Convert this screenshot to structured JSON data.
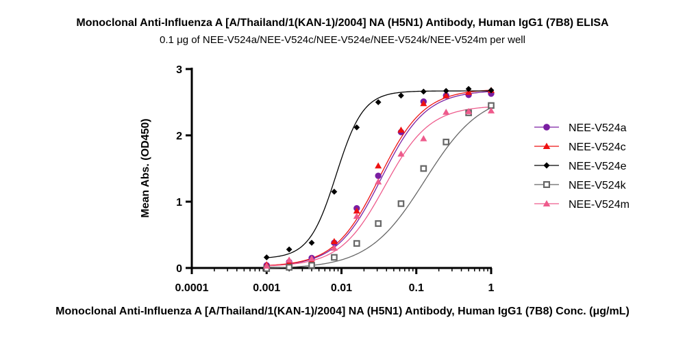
{
  "chart_data": {
    "type": "scatter",
    "title": "Monoclonal Anti-Influenza A [A/Thailand/1(KAN-1)/2004] NA (H5N1) Antibody, Human IgG1 (7B8) ELISA",
    "subtitle": "0.1 μg of  NEE-V524a/NEE-V524c/NEE-V524e/NEE-V524k/NEE-V524m  per well",
    "xlabel": "Monoclonal Anti-Influenza A [A/Thailand/1(KAN-1)/2004] NA (H5N1) Antibody, Human IgG1 (7B8) Conc. (μg/mL)",
    "ylabel": "Mean Abs. (OD450)",
    "x_scale": "log",
    "xlim": [
      0.0001,
      1
    ],
    "ylim": [
      0,
      3
    ],
    "x_ticks": [
      0.0001,
      0.001,
      0.01,
      0.1,
      1
    ],
    "x_tick_labels": [
      "0.0001",
      "0.001",
      "0.01",
      "0.1",
      "1"
    ],
    "y_ticks": [
      0,
      1,
      2,
      3
    ],
    "y_tick_labels": [
      "0",
      "1",
      "2",
      "3"
    ],
    "grid": false,
    "legend_position": "right",
    "x": [
      0.001,
      0.002,
      0.004,
      0.008,
      0.016,
      0.031,
      0.0625,
      0.125,
      0.25,
      0.5,
      1
    ],
    "series": [
      {
        "name": "NEE-V524a",
        "color": "#7a1fa2",
        "marker": "circle",
        "values": [
          0.04,
          0.09,
          0.15,
          0.38,
          0.9,
          1.39,
          2.05,
          2.51,
          2.6,
          2.61,
          2.63
        ],
        "fit": {
          "bottom": 0.02,
          "top": 2.68,
          "ec50": 0.034,
          "hill": 1.45
        }
      },
      {
        "name": "NEE-V524c",
        "color": "#ee1111",
        "marker": "triangle",
        "values": [
          0.05,
          0.08,
          0.11,
          0.4,
          0.86,
          1.54,
          2.08,
          2.48,
          2.6,
          2.65,
          2.68
        ],
        "fit": {
          "bottom": 0.02,
          "top": 2.7,
          "ec50": 0.032,
          "hill": 1.45
        }
      },
      {
        "name": "NEE-V524e",
        "color": "#000000",
        "marker": "diamond",
        "values": [
          0.16,
          0.28,
          0.38,
          1.15,
          2.12,
          2.5,
          2.6,
          2.66,
          2.67,
          2.7,
          2.68
        ],
        "fit": {
          "bottom": 0.14,
          "top": 2.67,
          "ec50": 0.0085,
          "hill": 2.4
        }
      },
      {
        "name": "NEE-V524k",
        "color": "#666666",
        "marker": "square-open",
        "values": [
          -0.01,
          0.01,
          0.04,
          0.16,
          0.37,
          0.67,
          0.97,
          1.5,
          1.9,
          2.34,
          2.45
        ],
        "fit": {
          "bottom": -0.01,
          "top": 2.65,
          "ec50": 0.13,
          "hill": 1.15
        }
      },
      {
        "name": "NEE-V524m",
        "color": "#ee5b8c",
        "marker": "triangle",
        "values": [
          0.03,
          0.12,
          0.14,
          0.3,
          0.78,
          1.3,
          1.72,
          1.95,
          2.35,
          2.36,
          2.37
        ],
        "fit": {
          "bottom": 0.02,
          "top": 2.45,
          "ec50": 0.038,
          "hill": 1.45
        }
      }
    ]
  }
}
